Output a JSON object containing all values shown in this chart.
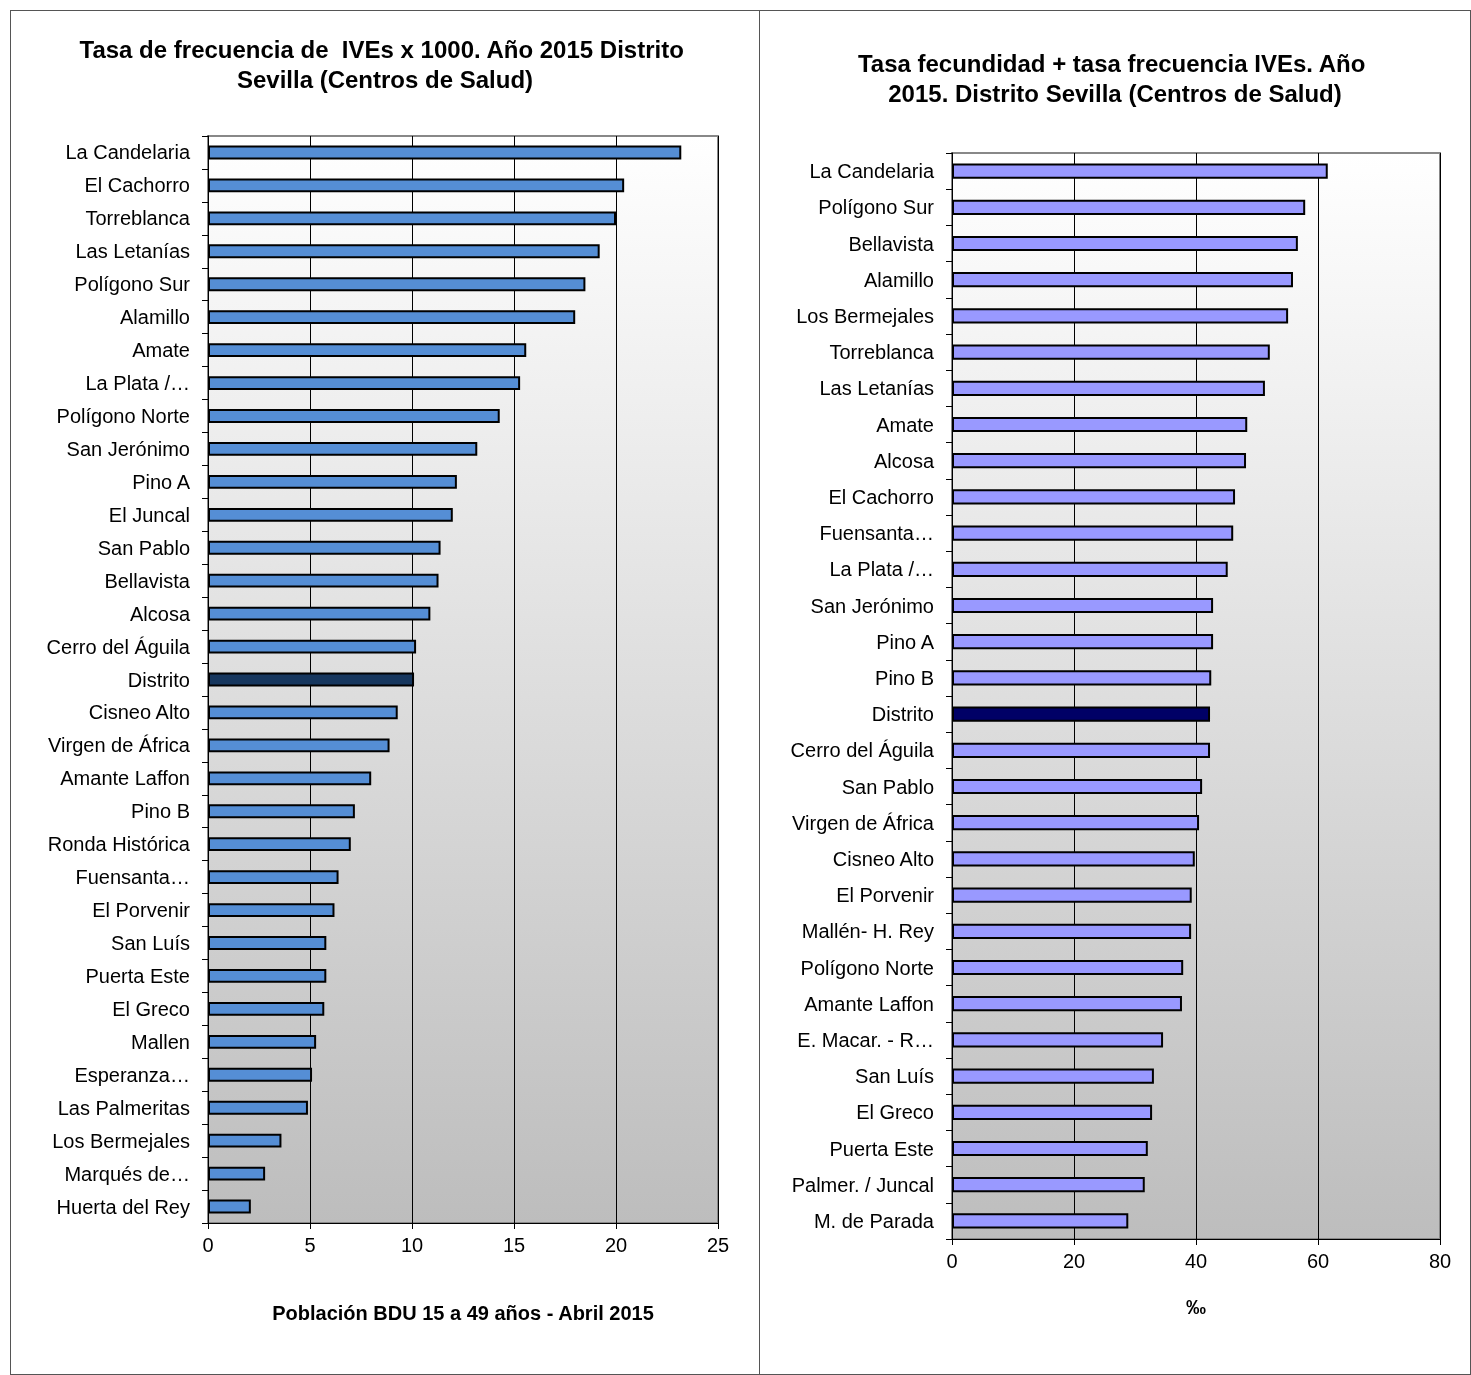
{
  "chart_data": [
    {
      "type": "bar",
      "orientation": "horizontal",
      "title": "Tasa de frecuencia de  IVEs x 1000. Año 2015 Distrito Sevilla (Centros de Salud)",
      "xlabel": "Población BDU 15 a 49 años - Abril 2015",
      "categories": [
        "La Candelaria",
        "El Cachorro",
        "Torreblanca",
        "Las Letanías",
        "Polígono Sur",
        "Alamillo",
        "Amate",
        "La Plata /…",
        "Polígono Norte",
        "San Jerónimo",
        "Pino A",
        "El Juncal",
        "San Pablo",
        "Bellavista",
        "Alcosa",
        "Cerro del Águila",
        "Distrito",
        "Cisneo Alto",
        "Virgen de África",
        "Amante Laffon",
        "Pino B",
        "Ronda Histórica",
        "Fuensanta…",
        "El Porvenir",
        "San Luís",
        "Puerta Este",
        "El Greco",
        "Mallen",
        "Esperanza…",
        "Las Palmeritas",
        "Los Bermejales",
        "Marqués de…",
        "Huerta del Rey"
      ],
      "values": [
        23.2,
        20.4,
        20.0,
        19.2,
        18.5,
        18.0,
        15.6,
        15.3,
        14.3,
        13.2,
        12.2,
        12.0,
        11.4,
        11.3,
        10.9,
        10.2,
        10.1,
        9.3,
        8.9,
        8.0,
        7.2,
        7.0,
        6.4,
        6.2,
        5.8,
        5.8,
        5.7,
        5.3,
        5.1,
        4.9,
        3.6,
        2.8,
        2.1
      ],
      "colors": [
        "#558ed5",
        "#558ed5",
        "#558ed5",
        "#558ed5",
        "#558ed5",
        "#558ed5",
        "#558ed5",
        "#558ed5",
        "#558ed5",
        "#558ed5",
        "#558ed5",
        "#558ed5",
        "#558ed5",
        "#558ed5",
        "#558ed5",
        "#558ed5",
        "#17375e",
        "#558ed5",
        "#558ed5",
        "#558ed5",
        "#558ed5",
        "#558ed5",
        "#558ed5",
        "#558ed5",
        "#558ed5",
        "#558ed5",
        "#558ed5",
        "#558ed5",
        "#558ed5",
        "#558ed5",
        "#558ed5",
        "#558ed5",
        "#558ed5"
      ],
      "xlim": [
        0,
        25
      ],
      "xticks": [
        0,
        5,
        10,
        15,
        20,
        25
      ],
      "grid": "x"
    },
    {
      "type": "bar",
      "orientation": "horizontal",
      "title": "Tasa fecundidad + tasa frecuencia IVEs. Año 2015. Distrito Sevilla (Centros de Salud)",
      "xlabel": "‰",
      "categories": [
        "La Candelaria",
        "Polígono Sur",
        "Bellavista",
        "Alamillo",
        "Los Bermejales",
        "Torreblanca",
        "Las Letanías",
        "Amate",
        "Alcosa",
        "El Cachorro",
        "Fuensanta…",
        "La Plata /…",
        "San Jerónimo",
        "Pino A",
        "Pino B",
        "Distrito",
        "Cerro del Águila",
        "San Pablo",
        "Virgen de África",
        "Cisneo Alto",
        "El Porvenir",
        "Mallén- H. Rey",
        "Polígono Norte",
        "Amante Laffon",
        "E. Macar. - R…",
        "San Luís",
        "El Greco",
        "Puerta Este",
        "Palmer. / Juncal",
        "M. de Parada"
      ],
      "values": [
        61.6,
        57.9,
        56.7,
        55.9,
        55.1,
        52.1,
        51.3,
        48.4,
        48.2,
        46.4,
        46.1,
        45.2,
        42.8,
        42.8,
        42.5,
        42.3,
        42.3,
        41.0,
        40.5,
        39.8,
        39.3,
        39.2,
        37.9,
        37.7,
        34.6,
        33.1,
        32.8,
        32.1,
        31.6,
        28.9
      ],
      "colors": [
        "#9999ff",
        "#9999ff",
        "#9999ff",
        "#9999ff",
        "#9999ff",
        "#9999ff",
        "#9999ff",
        "#9999ff",
        "#9999ff",
        "#9999ff",
        "#9999ff",
        "#9999ff",
        "#9999ff",
        "#9999ff",
        "#9999ff",
        "#000066",
        "#9999ff",
        "#9999ff",
        "#9999ff",
        "#9999ff",
        "#9999ff",
        "#9999ff",
        "#9999ff",
        "#9999ff",
        "#9999ff",
        "#9999ff",
        "#9999ff",
        "#9999ff",
        "#9999ff",
        "#9999ff"
      ],
      "xlim": [
        0,
        80
      ],
      "xticks": [
        0,
        20,
        40,
        60,
        80
      ],
      "grid": "x"
    }
  ]
}
